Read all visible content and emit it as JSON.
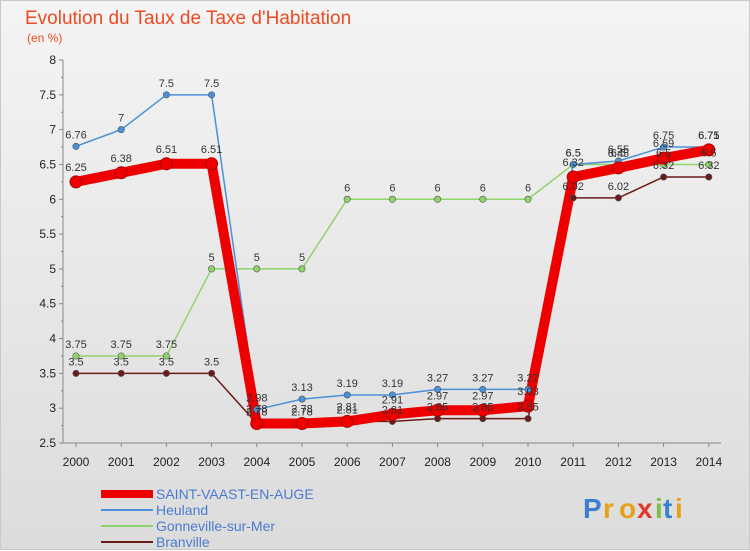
{
  "chart_data": {
    "type": "line",
    "title": "Evolution du Taux de Taxe d'Habitation",
    "subtitle": "(en %)",
    "x": [
      "2000",
      "2001",
      "2002",
      "2003",
      "2004",
      "2005",
      "2006",
      "2007",
      "2008",
      "2009",
      "2010",
      "2011",
      "2012",
      "2013",
      "2014"
    ],
    "ylim": [
      2.5,
      8
    ],
    "yticks": [
      2.5,
      3,
      3.5,
      4,
      4.5,
      5,
      5.5,
      6,
      6.5,
      7,
      7.5,
      8
    ],
    "ytick_labels": [
      "2.5",
      "3",
      "3.5",
      "4",
      "4.5",
      "5",
      "5.5",
      "6",
      "6.5",
      "7",
      "7.5",
      "8"
    ],
    "grid": false,
    "legend_position": "bottom-left",
    "series": [
      {
        "name": "SAINT-VAAST-EN-AUGE",
        "color": "#ee0000",
        "values": [
          6.25,
          6.38,
          6.51,
          6.51,
          2.78,
          2.78,
          2.81,
          2.91,
          2.97,
          2.97,
          3.03,
          6.32,
          6.45,
          6.59,
          6.71
        ],
        "labels": [
          "6.25",
          "6.38",
          "6.51",
          "6.51",
          "2.78",
          "2.78",
          "2.81",
          "2.91",
          "2.97",
          "2.97",
          "3.03",
          "6.32",
          "6.45",
          "6.59",
          "6.71"
        ]
      },
      {
        "name": "Heuland",
        "color": "#4a90d9",
        "values": [
          6.76,
          7,
          7.5,
          7.5,
          2.98,
          3.13,
          3.19,
          3.19,
          3.27,
          3.27,
          3.27,
          6.5,
          6.55,
          6.75,
          6.75
        ],
        "labels": [
          "6.76",
          "7",
          "7.5",
          "7.5",
          "2.98",
          "3.13",
          "3.19",
          "3.19",
          "3.27",
          "3.27",
          "3.27",
          "6.5",
          "6.55",
          "6.75",
          "6.75"
        ]
      },
      {
        "name": "Gonneville-sur-Mer",
        "color": "#8fd46a",
        "values": [
          3.75,
          3.75,
          3.75,
          5,
          5,
          5,
          6,
          6,
          6,
          6,
          6,
          6.5,
          6.5,
          6.5,
          6.5
        ],
        "labels": [
          "3.75",
          "3.75",
          "3.75",
          "5",
          "5",
          "5",
          "6",
          "6",
          "6",
          "6",
          "6",
          "6.5",
          "6.5",
          "6.5",
          "6.5"
        ]
      },
      {
        "name": "Branville",
        "color": "#6b1a1a",
        "values": [
          3.5,
          3.5,
          3.5,
          3.5,
          2.78,
          2.78,
          2.81,
          2.81,
          2.85,
          2.85,
          2.85,
          6.02,
          6.02,
          6.32,
          6.32
        ],
        "labels": [
          "3.5",
          "3.5",
          "3.5",
          "3.5",
          "2.78",
          "2.78",
          "2.81",
          "2.81",
          "2.85",
          "2.85",
          "2.85",
          "6.02",
          "6.02",
          "6.32",
          "6.32"
        ]
      }
    ]
  },
  "logo": {
    "letters": [
      "P",
      "r",
      "o",
      "x",
      "i",
      "t",
      "i"
    ],
    "colors": [
      "#3a7fd0",
      "#e8a01c",
      "#e8a01c",
      "#e03a2a",
      "#7cc040",
      "#3a7fd0",
      "#e8a01c"
    ]
  }
}
